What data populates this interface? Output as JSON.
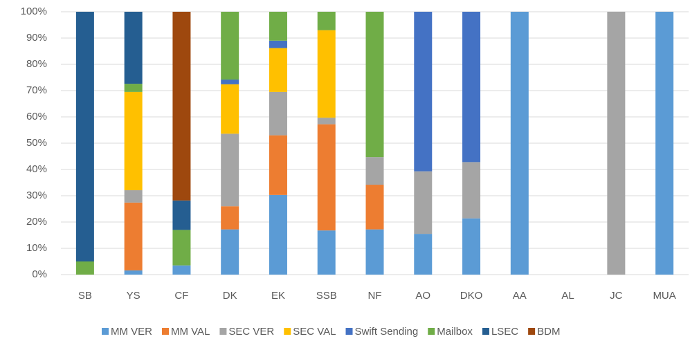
{
  "chart_data": {
    "type": "stacked_bar",
    "categories": [
      "SB",
      "YS",
      "CF",
      "DK",
      "EK",
      "SSB",
      "NF",
      "AO",
      "DKO",
      "AA",
      "AL",
      "JC",
      "MUA"
    ],
    "series": [
      {
        "name": "MM VER",
        "color": "#5b9bd5",
        "values": [
          0,
          1.6,
          3.5,
          17.2,
          30.3,
          16.8,
          17.2,
          15.5,
          21.4,
          100,
          0,
          0,
          100
        ]
      },
      {
        "name": "MM VAL",
        "color": "#ed7d31",
        "values": [
          0,
          25.8,
          0,
          8.8,
          22.7,
          40.4,
          17,
          0,
          0,
          0,
          0,
          0,
          0
        ]
      },
      {
        "name": "SEC VER",
        "color": "#a5a5a5",
        "values": [
          0,
          4.7,
          0,
          27.6,
          16.5,
          2.5,
          10.5,
          23.8,
          21.4,
          0,
          0,
          100,
          0
        ]
      },
      {
        "name": "SEC VAL",
        "color": "#ffc000",
        "values": [
          0,
          37.4,
          0,
          18.8,
          16.7,
          33.3,
          0,
          0,
          0,
          0,
          0,
          0,
          0
        ]
      },
      {
        "name": "Swift Sending",
        "color": "#4472c4",
        "values": [
          0,
          0,
          0,
          1.8,
          2.8,
          0,
          0,
          60.7,
          57.2,
          0,
          0,
          0,
          0
        ]
      },
      {
        "name": "Mailbox",
        "color": "#70ad47",
        "values": [
          5,
          3.1,
          13.5,
          25.8,
          11,
          7,
          55.3,
          0,
          0,
          0,
          0,
          0,
          0
        ]
      },
      {
        "name": "LSEC",
        "color": "#255e91",
        "values": [
          95,
          27.4,
          11.2,
          0,
          0,
          0,
          0,
          0,
          0,
          0,
          0,
          0,
          0
        ]
      },
      {
        "name": "BDM",
        "color": "#9e480e",
        "values": [
          0,
          0,
          71.8,
          0,
          0,
          0,
          0,
          0,
          0,
          0,
          0,
          0,
          0
        ]
      }
    ],
    "ylim": [
      0,
      100
    ],
    "yticks": [
      {
        "value": 0,
        "label": "0%"
      },
      {
        "value": 10,
        "label": "10%"
      },
      {
        "value": 20,
        "label": "20%"
      },
      {
        "value": 30,
        "label": "30%"
      },
      {
        "value": 40,
        "label": "40%"
      },
      {
        "value": 50,
        "label": "50%"
      },
      {
        "value": 60,
        "label": "60%"
      },
      {
        "value": 70,
        "label": "70%"
      },
      {
        "value": 80,
        "label": "80%"
      },
      {
        "value": 90,
        "label": "90%"
      },
      {
        "value": 100,
        "label": "100%"
      }
    ],
    "grid": true,
    "legend": "bottom"
  }
}
